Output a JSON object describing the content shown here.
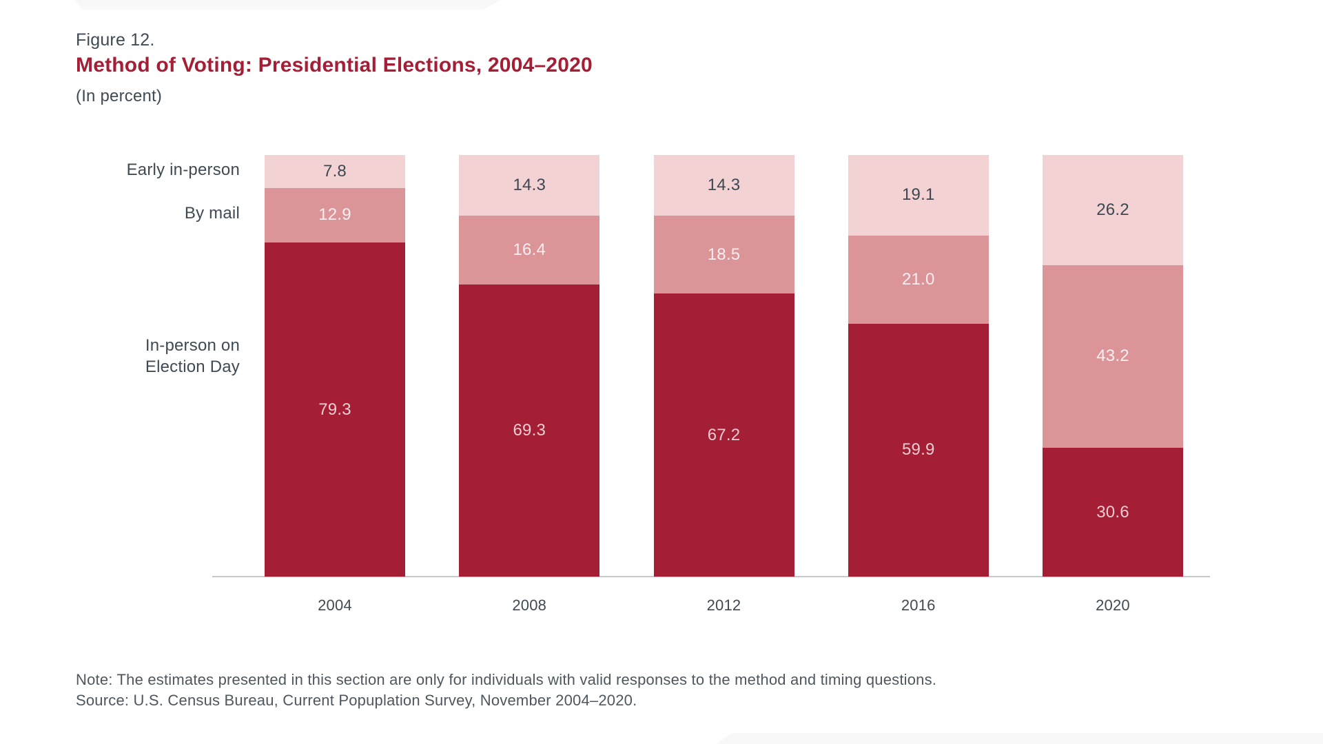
{
  "figure": {
    "label": "Figure 12.",
    "title": "Method of Voting: Presidential Elections, 2004–2020",
    "subtitle": "(In percent)"
  },
  "footer": {
    "note": "Note: The estimates presented in this section are only for individuals with valid responses to the method and timing questions.",
    "source": "Source: U.S. Census Bureau, Current Popuplation Survey, November 2004–2020."
  },
  "colors": {
    "title_red": "#a41e35",
    "heading_gray": "#3e4a54",
    "note_gray": "#4e575f",
    "axis_line": "#c7c8ca"
  },
  "chart_data": {
    "type": "bar",
    "subtype": "stacked-vertical-100pct",
    "title": "Method of Voting: Presidential Elections, 2004–2020",
    "unit": "percent",
    "grid": false,
    "legend_position": "row-labels-left",
    "ylim": [
      0,
      100
    ],
    "categories": [
      "2004",
      "2008",
      "2012",
      "2016",
      "2020"
    ],
    "series": [
      {
        "key": "election-day",
        "name": "In-person on Election Day",
        "stack_position": "bottom",
        "color": "#a41e35",
        "label_color": "#eeccd2",
        "values": [
          79.3,
          69.3,
          67.2,
          59.9,
          30.6
        ],
        "labels": [
          "79.3",
          "69.3",
          "67.2",
          "59.9",
          "30.6"
        ]
      },
      {
        "key": "by-mail",
        "name": "By mail",
        "stack_position": "middle",
        "color": "#db9599",
        "label_color": "#faeef0",
        "values": [
          12.9,
          16.4,
          18.5,
          21.0,
          43.2
        ],
        "labels": [
          "12.9",
          "16.4",
          "18.5",
          "21.0",
          "43.2"
        ]
      },
      {
        "key": "early-in-person",
        "name": "Early in-person",
        "stack_position": "top",
        "color": "#f3d2d4",
        "label_color": "#3d4651",
        "values": [
          7.8,
          14.3,
          14.3,
          19.1,
          26.2
        ],
        "labels": [
          "7.8",
          "14.3",
          "14.3",
          "19.1",
          "26.2"
        ]
      }
    ]
  }
}
